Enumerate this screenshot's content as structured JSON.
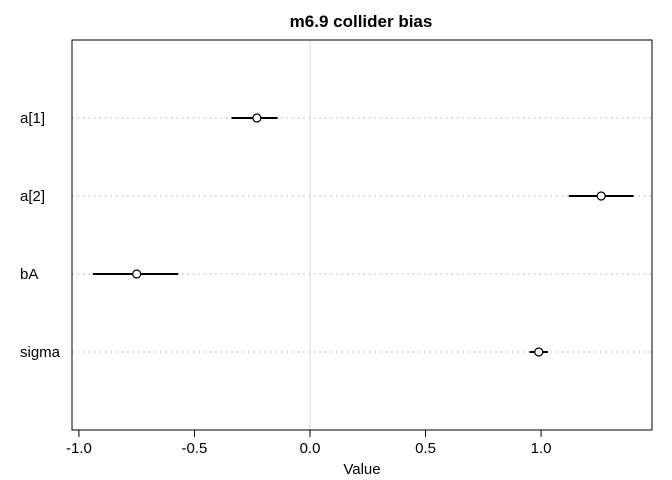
{
  "chart_data": {
    "type": "scatter",
    "title": "m6.9 collider bias",
    "xlabel": "Value",
    "ylabel": "",
    "xlim": [
      -1.03,
      1.48
    ],
    "xticks": [
      -1.0,
      -0.5,
      0.0,
      0.5,
      1.0
    ],
    "xtick_labels": [
      "-1.0",
      "-0.5",
      "0.0",
      "0.5",
      "1.0"
    ],
    "reference_line": 0.0,
    "grid": "dotted horizontal lines at each parameter",
    "parameters": [
      {
        "label": "a[1]",
        "mean": -0.23,
        "lower": -0.34,
        "upper": -0.14
      },
      {
        "label": "a[2]",
        "mean": 1.26,
        "lower": 1.12,
        "upper": 1.4
      },
      {
        "label": "bA",
        "mean": -0.75,
        "lower": -0.94,
        "upper": -0.57
      },
      {
        "label": "sigma",
        "mean": 0.99,
        "lower": 0.95,
        "upper": 1.03
      }
    ]
  },
  "colors": {
    "text": "#000000",
    "axis": "#000000",
    "gridline": "#c8c8c8",
    "zero_line": "#d9d9d9",
    "point": "#000000"
  }
}
